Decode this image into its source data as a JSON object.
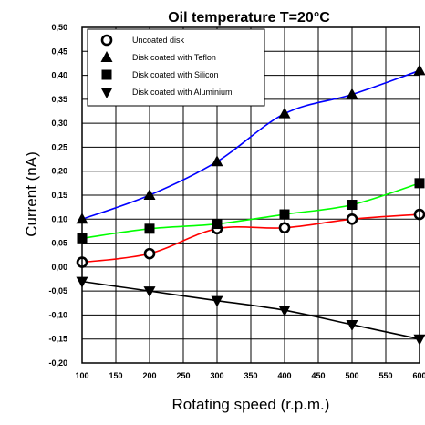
{
  "chart_data": {
    "type": "line",
    "title": "Oil temperature T=20°C",
    "xlabel": "Rotating speed (r.p.m.)",
    "ylabel": "Current (nA)",
    "xlim": [
      100,
      600
    ],
    "ylim": [
      -0.2,
      0.5
    ],
    "x_ticks": [
      "100",
      "150",
      "200",
      "250",
      "300",
      "350",
      "400",
      "450",
      "500",
      "550",
      "600"
    ],
    "y_ticks": [
      "-0,20",
      "-0,15",
      "-0,10",
      "-0,05",
      "0,00",
      "0,05",
      "0,10",
      "0,15",
      "0,20",
      "0,25",
      "0,30",
      "0,35",
      "0,40",
      "0,45",
      "0,50"
    ],
    "grid": true,
    "legend_position": "top-left",
    "series": [
      {
        "name": "Uncoated disk",
        "marker": "circle",
        "fit_color": "#ff0000",
        "x": [
          100,
          200,
          300,
          400,
          500,
          600
        ],
        "y": [
          0.01,
          0.028,
          0.08,
          0.082,
          0.1,
          0.11
        ]
      },
      {
        "name": "Disk coated with Teflon",
        "marker": "triangle-up",
        "fit_color": "#0000ff",
        "x": [
          100,
          200,
          300,
          400,
          500,
          600
        ],
        "y": [
          0.1,
          0.15,
          0.22,
          0.32,
          0.36,
          0.41
        ]
      },
      {
        "name": "Disk coated with Silicon",
        "marker": "square",
        "fit_color": "#00ff00",
        "x": [
          100,
          200,
          300,
          400,
          500,
          600
        ],
        "y": [
          0.06,
          0.08,
          0.09,
          0.11,
          0.13,
          0.175
        ]
      },
      {
        "name": "Disk coated with Aluminium",
        "marker": "triangle-down",
        "fit_color": "#000000",
        "x": [
          100,
          200,
          300,
          400,
          500,
          600
        ],
        "y": [
          -0.03,
          -0.05,
          -0.07,
          -0.09,
          -0.12,
          -0.15
        ]
      }
    ]
  }
}
